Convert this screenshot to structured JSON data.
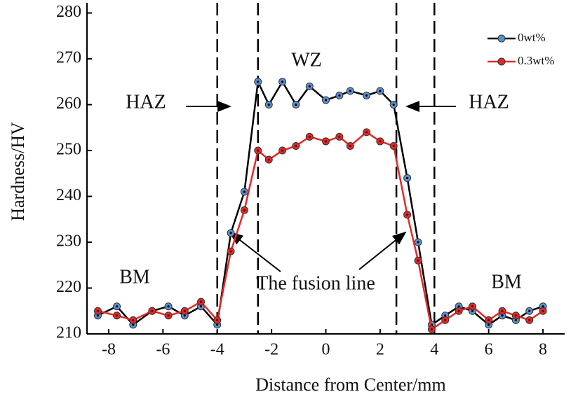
{
  "chart_data": {
    "type": "line",
    "x_label": "Distance from Center/mm",
    "y_label": "Hardness/HV",
    "x": [
      -8.4,
      -7.7,
      -7.1,
      -6.4,
      -5.8,
      -5.2,
      -4.6,
      -4.0,
      -3.5,
      -3.0,
      -2.5,
      -2.1,
      -1.6,
      -1.1,
      -0.6,
      0.0,
      0.5,
      0.9,
      1.5,
      2.0,
      2.5,
      3.0,
      3.4,
      3.9,
      4.4,
      4.9,
      5.4,
      6.0,
      6.5,
      7.0,
      7.5,
      8.0
    ],
    "series": [
      {
        "name": "0wt%",
        "color": "#000000",
        "marker_color": "#5b8fd0",
        "values": [
          214,
          216,
          212,
          215,
          216,
          214,
          216,
          212,
          232,
          241,
          265,
          260,
          265,
          260,
          264,
          261,
          262,
          263,
          262,
          263,
          260,
          244,
          230,
          212,
          214,
          216,
          215,
          212,
          214,
          213,
          215,
          216
        ]
      },
      {
        "name": "0.3wt%",
        "color": "#e02a2a",
        "marker_color": "#e02a2a",
        "values": [
          215,
          214,
          213,
          215,
          214,
          215,
          217,
          213,
          228,
          237,
          250,
          248,
          250,
          251,
          253,
          252,
          253,
          251,
          254,
          252,
          251,
          236,
          226,
          211,
          213,
          215,
          216,
          213,
          215,
          214,
          213,
          215
        ]
      }
    ],
    "vlines": [
      -4,
      -2.5,
      2.6,
      4
    ],
    "annotations": [
      "HAZ",
      "HAZ",
      "WZ",
      "BM",
      "BM",
      "The fusion line"
    ],
    "xlim": [
      -8.8,
      8.8
    ],
    "xticks": [
      -8,
      -6,
      -4,
      -2,
      0,
      2,
      4,
      6,
      8
    ],
    "ylim": [
      210,
      281
    ],
    "yticks": [
      210,
      220,
      230,
      240,
      250,
      260,
      270,
      280
    ],
    "legend": "upper right"
  }
}
